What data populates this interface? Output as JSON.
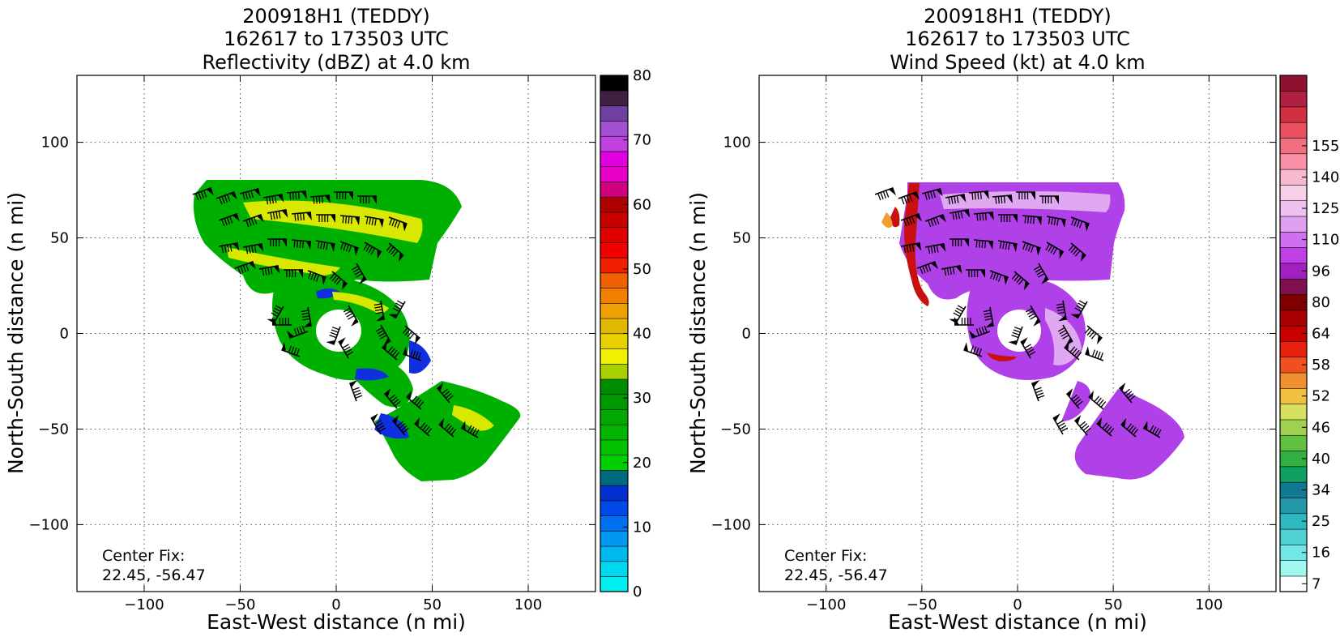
{
  "panels": [
    {
      "title_lines": [
        "200918H1 (TEDDY)",
        "162617 to 173503 UTC",
        "Reflectivity (dBZ) at 4.0 km"
      ],
      "center_fix_label": "Center Fix:",
      "center_fix_value": "22.45, -56.47",
      "colorbar": {
        "tick_labels": [
          "0",
          "10",
          "20",
          "30",
          "40",
          "50",
          "60",
          "70",
          "80"
        ],
        "colors": [
          "#00f0f0",
          "#00d8f0",
          "#00b8f0",
          "#0098f0",
          "#0070f0",
          "#0048e8",
          "#0030d0",
          "#006a80",
          "#00d000",
          "#00c000",
          "#00b400",
          "#00a800",
          "#009800",
          "#008c00",
          "#a8d000",
          "#f0f000",
          "#e8d000",
          "#e0b800",
          "#f0a000",
          "#f08000",
          "#f06000",
          "#f02000",
          "#f00000",
          "#e00000",
          "#c80000",
          "#b00000",
          "#d00080",
          "#e800c8",
          "#e000e0",
          "#c040e0",
          "#a050d0",
          "#7040a0",
          "#402040",
          "#000000"
        ]
      },
      "bg_color": "#00b000",
      "color_a": "#d8e800",
      "color_b": "#1030e0"
    },
    {
      "title_lines": [
        "200918H1 (TEDDY)",
        "162617 to 173503 UTC",
        "Wind Speed (kt) at 4.0 km"
      ],
      "center_fix_label": "Center Fix:",
      "center_fix_value": "22.45, -56.47",
      "colorbar": {
        "tick_labels": [
          "7",
          "16",
          "25",
          "34",
          "40",
          "46",
          "52",
          "58",
          "64",
          "80",
          "96",
          "110",
          "125",
          "140",
          "155"
        ],
        "colors": [
          "#ffffff",
          "#a0f8f0",
          "#70e8e8",
          "#50d0d0",
          "#30b8c0",
          "#2098a8",
          "#107890",
          "#10a060",
          "#30b040",
          "#60c040",
          "#a0d050",
          "#d8e060",
          "#f0c040",
          "#f09030",
          "#f05020",
          "#e82010",
          "#c80000",
          "#a80000",
          "#800000",
          "#801050",
          "#a020c0",
          "#c040e8",
          "#d070f0",
          "#e0a0f0",
          "#f0c0f0",
          "#f8d0e8",
          "#f8b8d0",
          "#f890a8",
          "#f07080",
          "#e85060",
          "#d03040",
          "#b02040",
          "#901030"
        ]
      },
      "bg_color": "#b040e8",
      "color_a": "#e0a8f0",
      "color_b": "#c81010"
    }
  ],
  "chart_data": [
    {
      "type": "heatmap",
      "title": "200918H1 (TEDDY) 162617 to 173503 UTC Reflectivity (dBZ) at 4.0 km",
      "xlabel": "East-West distance (n mi)",
      "ylabel": "North-South distance (n mi)",
      "xlim": [
        -135,
        135
      ],
      "ylim": [
        -135,
        135
      ],
      "xticks": [
        -100,
        -50,
        0,
        50,
        100
      ],
      "yticks": [
        -100,
        -50,
        0,
        50,
        100
      ],
      "x_tick_labels": [
        "−100",
        "−50",
        "0",
        "50",
        "100"
      ],
      "y_tick_labels": [
        "−100",
        "−50",
        "0",
        "50",
        "100"
      ],
      "grid": true,
      "colorbar_range": [
        0,
        80
      ],
      "units": "dBZ",
      "annotation": "Center Fix: 22.45, -56.47"
    },
    {
      "type": "heatmap",
      "title": "200918H1 (TEDDY) 162617 to 173503 UTC Wind Speed (kt) at 4.0 km",
      "xlabel": "East-West distance (n mi)",
      "ylabel": "North-South distance (n mi)",
      "xlim": [
        -135,
        135
      ],
      "ylim": [
        -135,
        135
      ],
      "xticks": [
        -100,
        -50,
        0,
        50,
        100
      ],
      "yticks": [
        -100,
        -50,
        0,
        50,
        100
      ],
      "x_tick_labels": [
        "−100",
        "−50",
        "0",
        "50",
        "100"
      ],
      "y_tick_labels": [
        "−100",
        "−50",
        "0",
        "50",
        "100"
      ],
      "grid": true,
      "colorbar_range": [
        0,
        160
      ],
      "units": "kt",
      "annotation": "Center Fix: 22.45, -56.47"
    }
  ]
}
